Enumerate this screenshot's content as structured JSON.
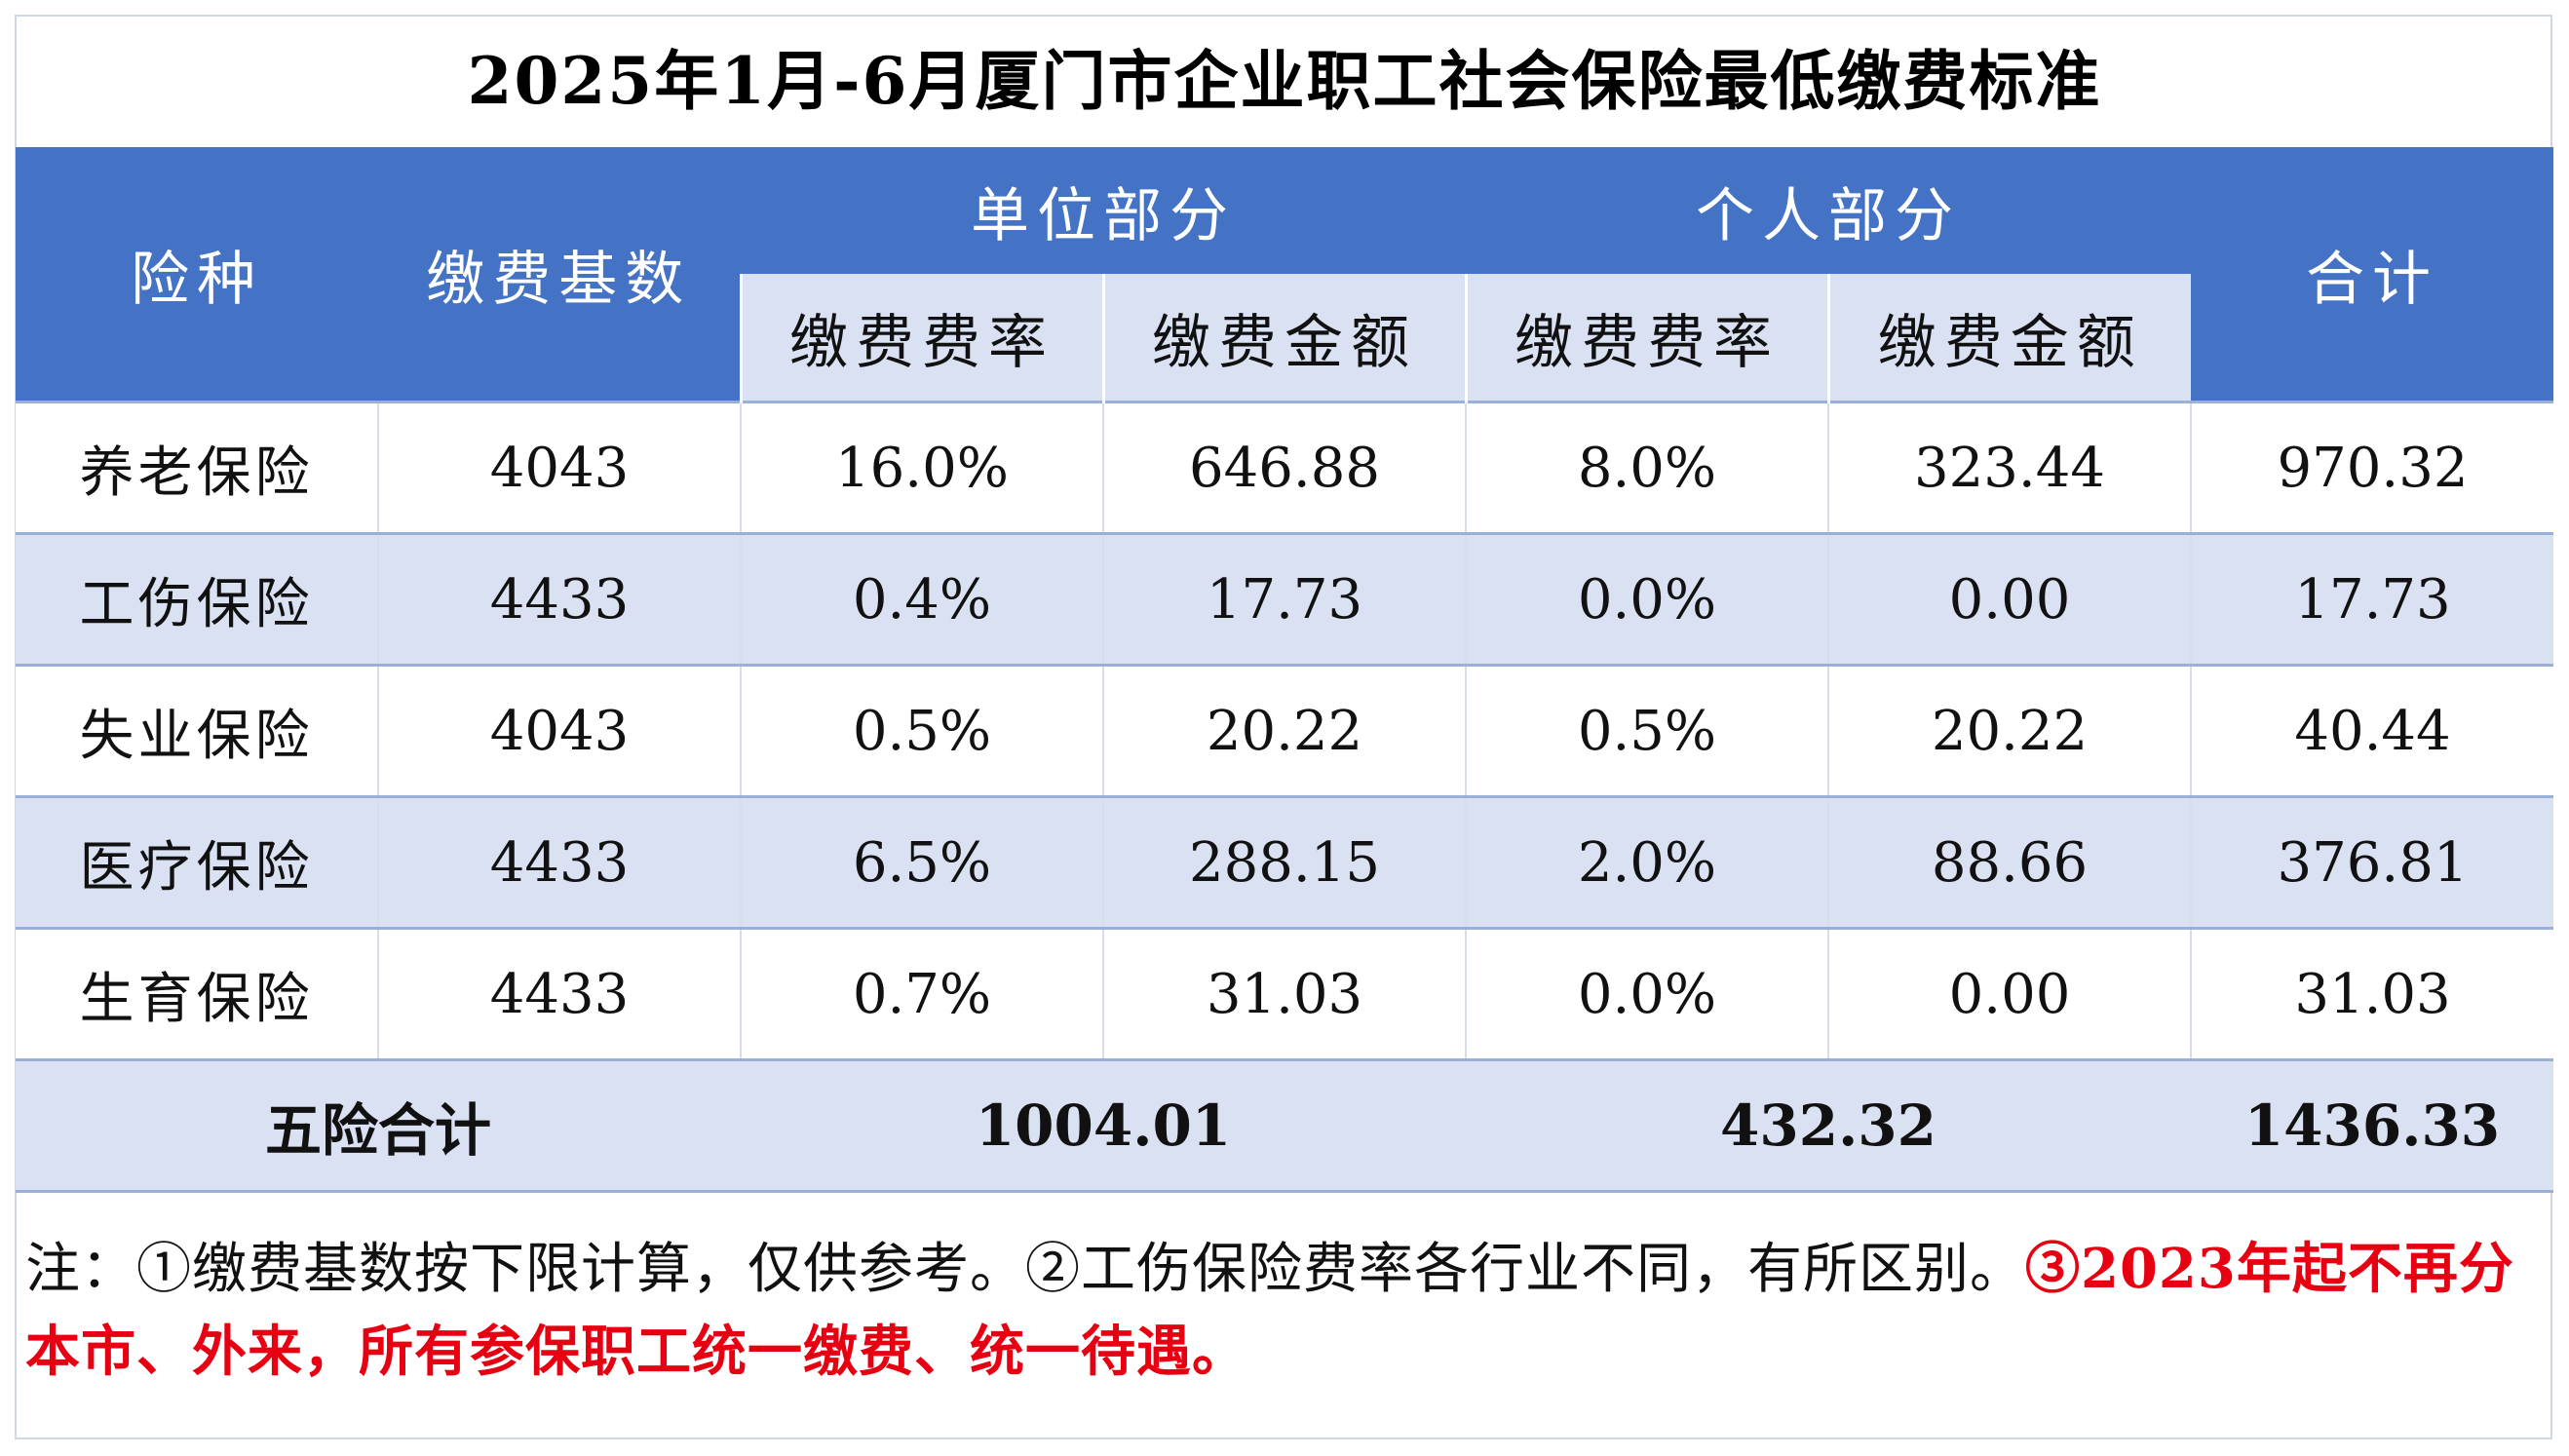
{
  "title": "2025年1月-6月厦门市企业职工社会保险最低缴费标准",
  "header": {
    "type_label": "险种",
    "base_label": "缴费基数",
    "employer_group": "单位部分",
    "employee_group": "个人部分",
    "total_label": "合计",
    "rate_label": "缴费费率",
    "amount_label": "缴费金额"
  },
  "rows": [
    {
      "name": "养老保险",
      "base": "4043",
      "employer_rate": "16.0%",
      "employer_amount": "646.88",
      "employee_rate": "8.0%",
      "employee_amount": "323.44",
      "total": "970.32"
    },
    {
      "name": "工伤保险",
      "base": "4433",
      "employer_rate": "0.4%",
      "employer_amount": "17.73",
      "employee_rate": "0.0%",
      "employee_amount": "0.00",
      "total": "17.73"
    },
    {
      "name": "失业保险",
      "base": "4043",
      "employer_rate": "0.5%",
      "employer_amount": "20.22",
      "employee_rate": "0.5%",
      "employee_amount": "20.22",
      "total": "40.44"
    },
    {
      "name": "医疗保险",
      "base": "4433",
      "employer_rate": "6.5%",
      "employer_amount": "288.15",
      "employee_rate": "2.0%",
      "employee_amount": "88.66",
      "total": "376.81"
    },
    {
      "name": "生育保险",
      "base": "4433",
      "employer_rate": "0.7%",
      "employer_amount": "31.03",
      "employee_rate": "0.0%",
      "employee_amount": "0.00",
      "total": "31.03"
    }
  ],
  "totals": {
    "label": "五险合计",
    "employer": "1004.01",
    "employee": "432.32",
    "grand": "1436.33"
  },
  "note": {
    "black": "注：①缴费基数按下限计算，仅供参考。②工伤保险费率各行业不同，有所区别。",
    "red": "③2023年起不再分本市、外来，所有参保职工统一缴费、统一待遇。"
  },
  "colors": {
    "header_blue": "#4472c4",
    "light_blue": "#d9e1f2",
    "note_red": "#e60012"
  }
}
